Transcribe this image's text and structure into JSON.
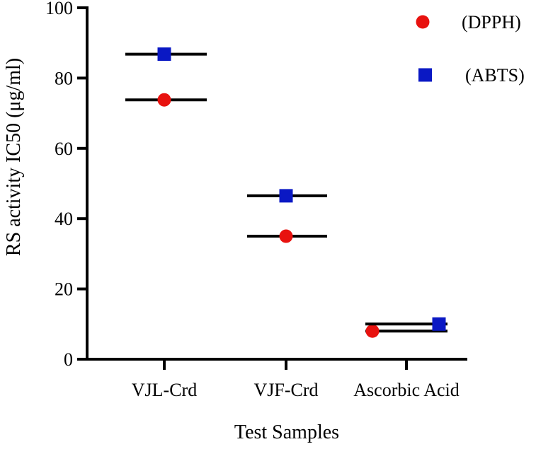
{
  "chart_data": {
    "type": "scatter",
    "title": "",
    "xlabel": "Test Samples",
    "ylabel": "RS activity IC50 (μg/ml)",
    "ylim": [
      0,
      100
    ],
    "yticks": [
      0,
      20,
      40,
      60,
      80,
      100
    ],
    "categories": [
      "VJL-Crd",
      "VJF-Crd",
      "Ascorbic Acid"
    ],
    "grid": false,
    "legend_position": "top-right",
    "series": [
      {
        "name": "(DPPH)",
        "marker": "circle",
        "color": "#e8120f",
        "values": [
          73.8,
          35.0,
          8.0
        ]
      },
      {
        "name": "(ABTS)",
        "marker": "square",
        "color": "#0a18c4",
        "values": [
          86.8,
          46.5,
          10.0
        ]
      }
    ]
  }
}
